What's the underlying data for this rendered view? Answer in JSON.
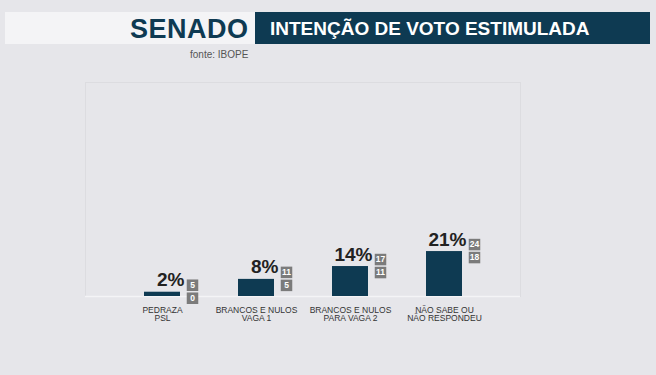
{
  "chart_data": {
    "type": "bar",
    "title": "SENADO",
    "subtitle": "INTENÇÃO DE VOTO ESTIMULADA",
    "source": "fonte: IBOPE",
    "categories": [
      "PEDRAZA\nPSL",
      "BRANCOS E NULOS\nVAGA 1",
      "BRANCOS E NULOS\nPARA VAGA 2",
      "NÃO SABE OU\nNÃO RESPONDEU"
    ],
    "values": [
      2,
      8,
      14,
      21
    ],
    "value_labels": [
      "2%",
      "8%",
      "14%",
      "21%"
    ],
    "upper": [
      5,
      11,
      17,
      24
    ],
    "lower": [
      0,
      5,
      11,
      18
    ],
    "color": "#0e3a52",
    "ylim": [
      0,
      100
    ],
    "data_labels": true,
    "tick_labels": "x"
  }
}
